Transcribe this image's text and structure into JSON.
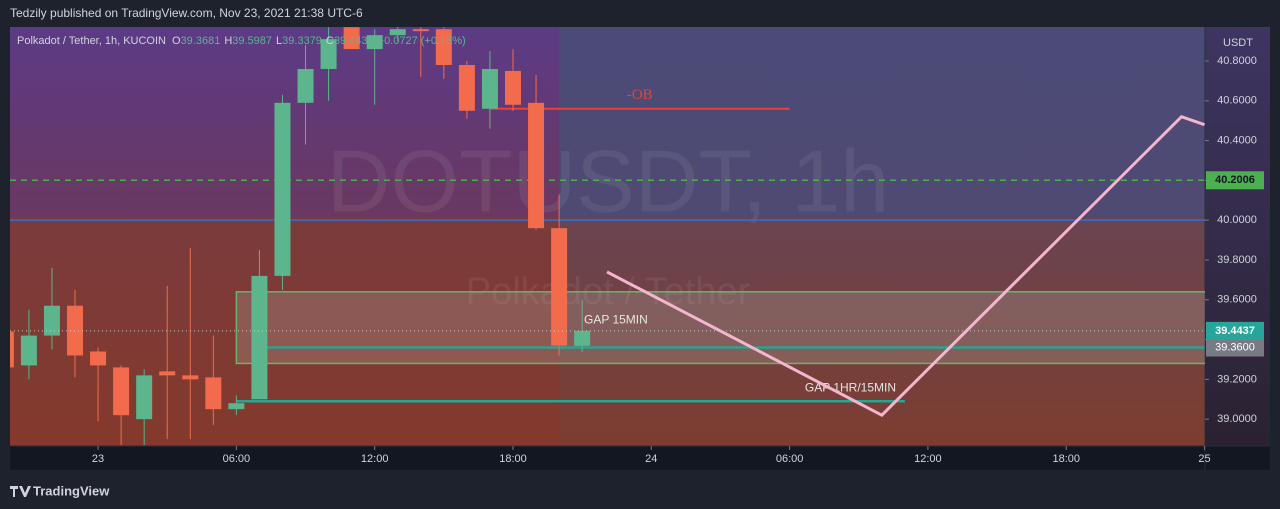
{
  "header": "Tedzily published on TradingView.com, Nov 23, 2021 21:38 UTC-6",
  "footer": "TradingView",
  "chart_data": {
    "type": "candlestick",
    "legend": {
      "title": "Polkadot / Tether, 1h, KUCOIN",
      "fields": [
        "O",
        "H",
        "L",
        "C"
      ],
      "change": "+0.0727 (+0.18%)"
    },
    "watermark": [
      "DOTUSDT, 1h",
      "Polkadot / Tether"
    ],
    "y_axis_label": "USDT",
    "x": [
      -4,
      -3,
      -2,
      -1,
      0,
      1,
      2,
      3,
      4,
      5,
      6,
      7,
      8,
      9,
      10,
      11,
      12,
      13,
      14,
      15,
      16,
      17,
      18,
      19,
      20,
      21
    ],
    "open": [
      39.44,
      39.27,
      39.42,
      39.57,
      39.34,
      39.26,
      39.0,
      39.24,
      39.22,
      39.21,
      39.05,
      39.1,
      39.72,
      40.59,
      40.76,
      40.97,
      40.86,
      40.93,
      40.96,
      40.96,
      40.78,
      40.56,
      40.75,
      40.59,
      39.96,
      39.3681
    ],
    "high": [
      39.47,
      39.55,
      39.76,
      39.65,
      39.36,
      39.27,
      39.25,
      39.67,
      39.86,
      39.42,
      39.12,
      39.85,
      40.63,
      40.88,
      40.97,
      40.97,
      40.96,
      40.97,
      40.97,
      40.97,
      40.8,
      40.85,
      40.86,
      40.73,
      40.13,
      39.5987
    ],
    "low": [
      39.26,
      39.2,
      39.35,
      39.21,
      38.99,
      38.87,
      38.87,
      38.9,
      38.9,
      38.97,
      39.02,
      39.1,
      39.65,
      40.38,
      40.6,
      40.86,
      40.58,
      40.9,
      40.72,
      40.71,
      40.51,
      40.46,
      40.55,
      39.95,
      39.32,
      39.3379
    ],
    "close": [
      39.26,
      39.42,
      39.57,
      39.32,
      39.27,
      39.02,
      39.22,
      39.22,
      39.2,
      39.05,
      39.08,
      39.72,
      40.59,
      40.76,
      40.91,
      40.86,
      40.93,
      40.96,
      40.95,
      40.78,
      40.55,
      40.76,
      40.58,
      39.96,
      39.37,
      39.4437
    ],
    "up_color": "#5cb58c",
    "down_color": "#f26b4d",
    "xlim": [
      -3.82,
      48.02
    ],
    "ylim": [
      38.865,
      40.971
    ],
    "xticks": [
      {
        "value": 0,
        "label": "23"
      },
      {
        "value": 6,
        "label": "06:00"
      },
      {
        "value": 12,
        "label": "12:00"
      },
      {
        "value": 18,
        "label": "18:00"
      },
      {
        "value": 24,
        "label": "24"
      },
      {
        "value": 30,
        "label": "06:00"
      },
      {
        "value": 36,
        "label": "12:00"
      },
      {
        "value": 42,
        "label": "18:00"
      },
      {
        "value": 48,
        "label": "25"
      }
    ],
    "yticks": [
      {
        "value": 39,
        "label": "39.0000"
      },
      {
        "value": 39.2,
        "label": "39.2000"
      },
      {
        "value": 39.4,
        "label": "39.4000"
      },
      {
        "value": 39.6,
        "label": "39.6000"
      },
      {
        "value": 39.8,
        "label": "39.8000"
      },
      {
        "value": 40,
        "label": "40.0000"
      },
      {
        "value": 40.2,
        "label": "40.2000"
      },
      {
        "value": 40.4,
        "label": "40.4000"
      },
      {
        "value": 40.6,
        "label": "40.6000"
      },
      {
        "value": 40.8,
        "label": "40.8000"
      }
    ],
    "hlines": [
      {
        "value": 40.2006,
        "color": "#4caf50",
        "dashed": true
      },
      {
        "value": 40,
        "color": "#3d6cc8",
        "dashed": false
      }
    ],
    "ob": {
      "label": "-OB",
      "value": 40.56,
      "x": [
        17,
        30
      ],
      "color": "#e5433a"
    },
    "gap_box": {
      "label": "GAP 15MIN",
      "y": [
        39.28,
        39.64
      ],
      "x": [
        6,
        48
      ]
    },
    "levels": [
      {
        "value": {
          "value": 39.36,
          "label": "39.3600"
        },
        "x": [
          7,
          48
        ],
        "color": "#2aa38f"
      },
      {
        "value": 39.09,
        "x": [
          6,
          35
        ],
        "color": "#2aa38f",
        "label": "GAP 1HR/15MIN"
      }
    ],
    "projection": {
      "color": "#f4b5cf",
      "x": [
        22.08,
        34.0,
        47.0,
        48.0
      ],
      "y": [
        39.74,
        39.02,
        40.52,
        40.48
      ]
    }
  }
}
